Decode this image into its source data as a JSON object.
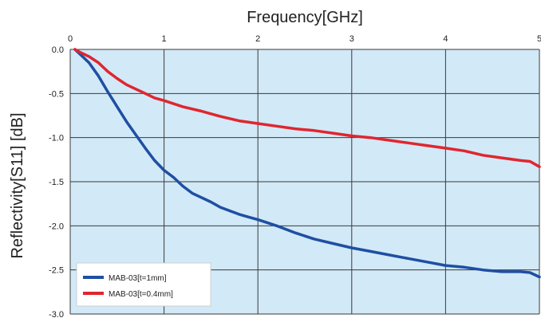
{
  "chart_data": {
    "type": "line",
    "title": "",
    "xlabel": "Frequency[GHz]",
    "ylabel": "Reflectivity[S11] [dB]",
    "xlim": [
      0,
      5
    ],
    "ylim": [
      -3.0,
      0.0
    ],
    "x_ticks": [
      "0",
      "1",
      "2",
      "3",
      "4",
      "5"
    ],
    "y_ticks": [
      "0.0",
      "-0.5",
      "-1.0",
      "-1.5",
      "-2.0",
      "-2.5",
      "-3.0"
    ],
    "grid": true,
    "x_axis_position": "top",
    "legend_position": "bottom-left",
    "plot_background": "#d2e9f7",
    "series": [
      {
        "name": "MAB-03[t=1mm]",
        "color": "#1f4fa3",
        "x": [
          0.05,
          0.1,
          0.2,
          0.3,
          0.4,
          0.5,
          0.6,
          0.7,
          0.8,
          0.9,
          1.0,
          1.1,
          1.2,
          1.3,
          1.4,
          1.5,
          1.6,
          1.7,
          1.8,
          1.9,
          2.0,
          2.2,
          2.4,
          2.6,
          2.8,
          3.0,
          3.2,
          3.4,
          3.6,
          3.8,
          4.0,
          4.2,
          4.4,
          4.6,
          4.8,
          4.9,
          5.0
        ],
        "y": [
          0.0,
          -0.05,
          -0.15,
          -0.3,
          -0.48,
          -0.65,
          -0.82,
          -0.97,
          -1.12,
          -1.26,
          -1.37,
          -1.45,
          -1.55,
          -1.63,
          -1.68,
          -1.73,
          -1.79,
          -1.83,
          -1.87,
          -1.9,
          -1.93,
          -2.0,
          -2.08,
          -2.15,
          -2.2,
          -2.25,
          -2.29,
          -2.33,
          -2.37,
          -2.41,
          -2.45,
          -2.47,
          -2.5,
          -2.52,
          -2.52,
          -2.53,
          -2.58
        ]
      },
      {
        "name": "MAB-03[t=0.4mm]",
        "color": "#e0262e",
        "x": [
          0.05,
          0.1,
          0.2,
          0.3,
          0.4,
          0.5,
          0.6,
          0.7,
          0.8,
          0.9,
          1.0,
          1.2,
          1.4,
          1.6,
          1.8,
          2.0,
          2.2,
          2.4,
          2.6,
          2.8,
          3.0,
          3.2,
          3.4,
          3.6,
          3.8,
          4.0,
          4.2,
          4.4,
          4.6,
          4.8,
          4.9,
          5.0
        ],
        "y": [
          0.0,
          -0.03,
          -0.08,
          -0.15,
          -0.25,
          -0.33,
          -0.4,
          -0.45,
          -0.5,
          -0.55,
          -0.58,
          -0.65,
          -0.7,
          -0.76,
          -0.81,
          -0.84,
          -0.87,
          -0.9,
          -0.92,
          -0.95,
          -0.98,
          -1.0,
          -1.03,
          -1.06,
          -1.09,
          -1.12,
          -1.15,
          -1.2,
          -1.23,
          -1.26,
          -1.27,
          -1.33
        ]
      }
    ]
  }
}
